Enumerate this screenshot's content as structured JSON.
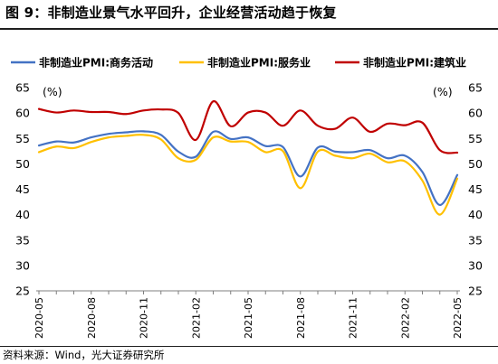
{
  "header": {
    "title": "图 9：非制造业景气水平回升，企业经营活动趋于恢复"
  },
  "footer": {
    "source": "资料来源：Wind，光大证券研究所"
  },
  "chart_data": {
    "type": "line",
    "ylim": [
      25,
      65
    ],
    "yticks": [
      25,
      30,
      35,
      40,
      45,
      50,
      55,
      60,
      65
    ],
    "yunit_left": "(%)",
    "yunit_right": "(%)",
    "xlabels": [
      "2020-05",
      "2020-08",
      "2020-11",
      "2021-02",
      "2021-05",
      "2021-08",
      "2021-11",
      "2022-02",
      "2022-05"
    ],
    "x": [
      "2020-05",
      "2020-06",
      "2020-07",
      "2020-08",
      "2020-09",
      "2020-10",
      "2020-11",
      "2020-12",
      "2021-01",
      "2021-02",
      "2021-03",
      "2021-04",
      "2021-05",
      "2021-06",
      "2021-07",
      "2021-08",
      "2021-09",
      "2021-10",
      "2021-11",
      "2021-12",
      "2022-01",
      "2022-02",
      "2022-03",
      "2022-04",
      "2022-05"
    ],
    "legend_position": "top",
    "series": [
      {
        "name": "非制造业PMI:商务活动",
        "color": "#4472C4",
        "values": [
          53.6,
          54.4,
          54.2,
          55.2,
          55.9,
          56.2,
          56.4,
          55.7,
          52.4,
          51.4,
          56.3,
          54.9,
          55.2,
          53.5,
          53.3,
          47.5,
          53.2,
          52.4,
          52.3,
          52.7,
          51.1,
          51.6,
          48.4,
          41.9,
          47.8
        ]
      },
      {
        "name": "非制造业PMI:服务业",
        "color": "#FFC000",
        "values": [
          52.3,
          53.4,
          53.1,
          54.3,
          55.2,
          55.5,
          55.7,
          54.8,
          51.1,
          50.8,
          55.2,
          54.4,
          54.3,
          52.3,
          52.5,
          45.2,
          52.4,
          51.6,
          51.1,
          52.0,
          50.3,
          50.5,
          46.7,
          40.0,
          47.1
        ]
      },
      {
        "name": "非制造业PMI:建筑业",
        "color": "#C00000",
        "values": [
          60.8,
          60.1,
          60.5,
          60.2,
          60.2,
          59.8,
          60.5,
          60.7,
          60.0,
          54.7,
          62.3,
          57.4,
          60.1,
          60.1,
          57.5,
          60.5,
          57.5,
          56.9,
          59.1,
          56.3,
          57.9,
          57.6,
          58.1,
          52.7,
          52.2
        ]
      }
    ]
  }
}
